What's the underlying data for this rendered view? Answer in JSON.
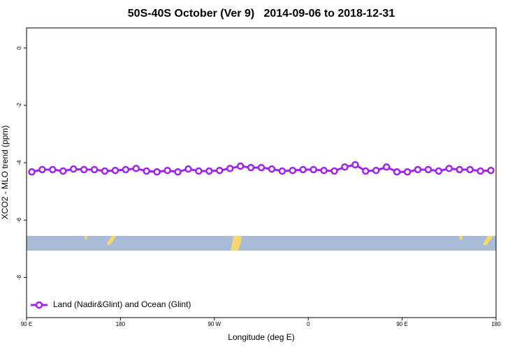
{
  "chart_data": {
    "type": "line",
    "title": "50S-40S October (Ver 9)   2014-09-06 to 2018-12-31",
    "xlabel": "Longitude (deg E)",
    "ylabel": "XCO2 - MLO trend (ppm)",
    "x": [
      95,
      105,
      115,
      125,
      135,
      145,
      155,
      165,
      175,
      185,
      195,
      205,
      215,
      225,
      235,
      245,
      255,
      265,
      275,
      285,
      295,
      305,
      315,
      325,
      335,
      345,
      355,
      365,
      375,
      385,
      395,
      405,
      415,
      425,
      435,
      445,
      455,
      465,
      475,
      485,
      495,
      505,
      515,
      525,
      535
    ],
    "series": [
      {
        "name": "Land (Nadir&Glint) and Ocean (Glint)",
        "color": "#a020f0",
        "values": [
          -4.32,
          -4.24,
          -4.24,
          -4.29,
          -4.22,
          -4.24,
          -4.24,
          -4.29,
          -4.27,
          -4.24,
          -4.2,
          -4.29,
          -4.32,
          -4.27,
          -4.32,
          -4.22,
          -4.29,
          -4.29,
          -4.27,
          -4.2,
          -4.12,
          -4.17,
          -4.17,
          -4.22,
          -4.29,
          -4.27,
          -4.24,
          -4.24,
          -4.27,
          -4.29,
          -4.15,
          -4.07,
          -4.29,
          -4.27,
          -4.15,
          -4.32,
          -4.32,
          -4.24,
          -4.24,
          -4.29,
          -4.2,
          -4.24,
          -4.24,
          -4.29,
          -4.27
        ]
      }
    ],
    "xlim": [
      90,
      540
    ],
    "xticks": [
      {
        "value": 90,
        "label": "90 E"
      },
      180,
      {
        "value": 270,
        "label": "90 W"
      },
      {
        "value": 360,
        "label": "0"
      },
      {
        "value": 450,
        "label": "90 E"
      },
      {
        "value": 540,
        "label": "180"
      }
    ],
    "ylim": [
      -9.4,
      0.7
    ],
    "yticks": [
      0,
      -2,
      -4,
      -6,
      -8
    ],
    "legend": "bottom-left"
  }
}
